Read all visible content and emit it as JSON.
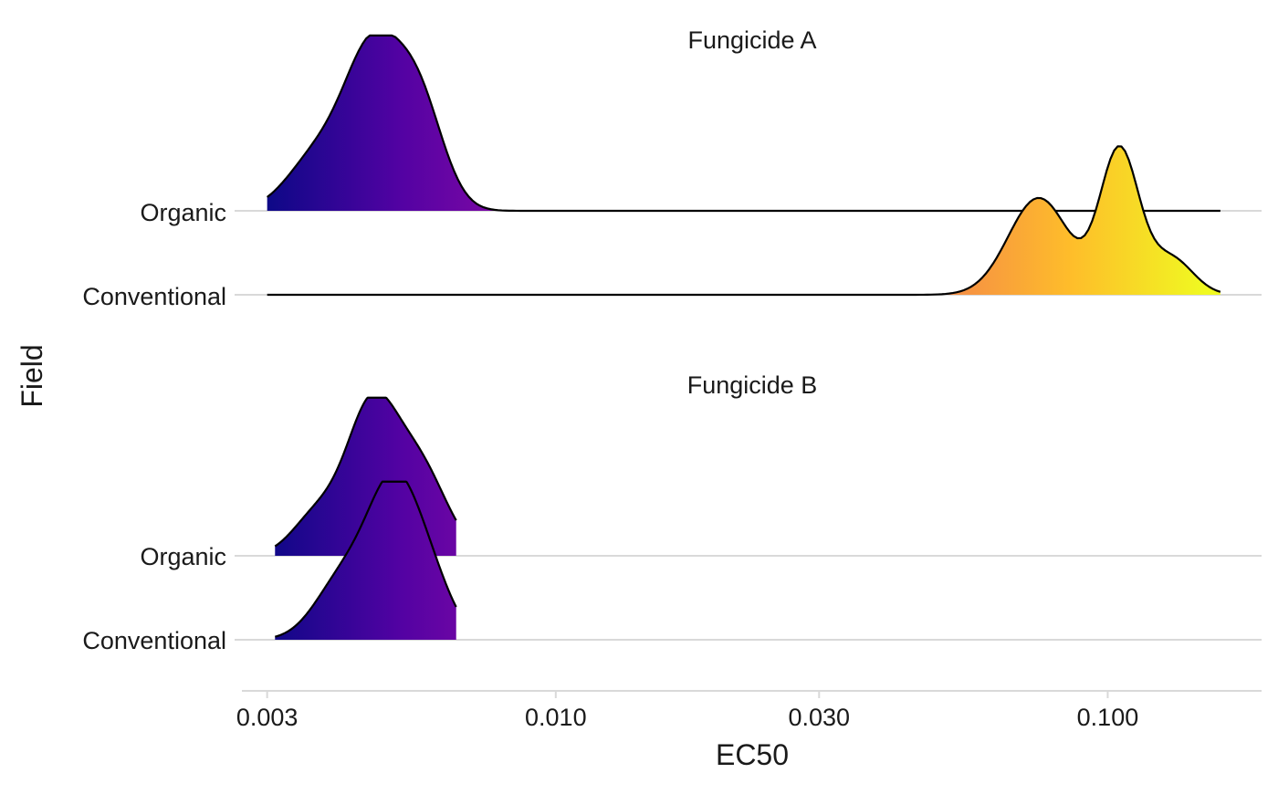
{
  "chart_data": {
    "type": "ridgeline",
    "xlabel": "EC50",
    "ylabel": "Field",
    "x_scale": "log10",
    "xlim": [
      0.0027,
      0.19
    ],
    "x_ticks": [
      0.003,
      0.01,
      0.03,
      0.1
    ],
    "x_tick_labels": [
      "0.003",
      "0.010",
      "0.030",
      "0.100"
    ],
    "categories": [
      "Organic",
      "Conventional"
    ],
    "colormap": "plasma",
    "colormap_domain": [
      0.003,
      0.15
    ],
    "colormap_stops": [
      "#0d0887",
      "#5302a3",
      "#8b0aa5",
      "#b83289",
      "#db5c68",
      "#f48849",
      "#febd2a",
      "#f0f921"
    ],
    "panels": [
      {
        "title": "Fungicide A",
        "series": [
          {
            "name": "Organic",
            "range": [
              0.003,
              0.16
            ],
            "peaks": [
              {
                "x": 0.0037,
                "height": 0.32,
                "width": 0.055
              },
              {
                "x": 0.00465,
                "height": 0.9,
                "width": 0.05
              },
              {
                "x": 0.00565,
                "height": 0.62,
                "width": 0.045
              }
            ]
          },
          {
            "name": "Conventional",
            "range": [
              0.003,
              0.16
            ],
            "peaks": [
              {
                "x": 0.075,
                "height": 0.58,
                "width": 0.055
              },
              {
                "x": 0.105,
                "height": 0.86,
                "width": 0.035
              },
              {
                "x": 0.13,
                "height": 0.22,
                "width": 0.04
              }
            ]
          }
        ]
      },
      {
        "title": "Fungicide B",
        "series": [
          {
            "name": "Organic",
            "range": [
              0.0031,
              0.0066
            ],
            "peaks": [
              {
                "x": 0.0037,
                "height": 0.27,
                "width": 0.045
              },
              {
                "x": 0.00462,
                "height": 0.92,
                "width": 0.045
              },
              {
                "x": 0.00565,
                "height": 0.58,
                "width": 0.05
              }
            ]
          },
          {
            "name": "Conventional",
            "range": [
              0.0031,
              0.0066
            ],
            "peaks": [
              {
                "x": 0.0041,
                "height": 0.38,
                "width": 0.05
              },
              {
                "x": 0.0051,
                "height": 1.0,
                "width": 0.048
              },
              {
                "x": 0.006,
                "height": 0.26,
                "width": 0.04
              }
            ]
          }
        ]
      }
    ]
  }
}
